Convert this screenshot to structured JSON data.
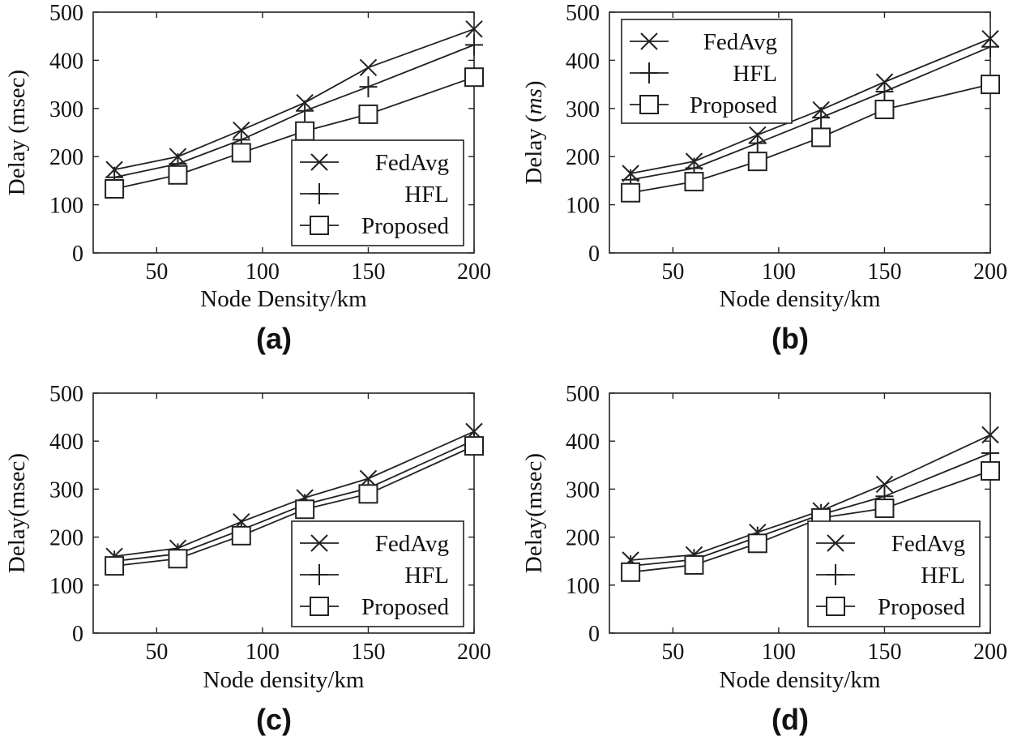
{
  "figure": {
    "background": "#ffffff",
    "line_color": "#222222"
  },
  "chart_data": [
    {
      "type": "line",
      "panel_label": "(a)",
      "xlabel": "Node Density/km",
      "ylabel": "Delay (msec)",
      "ylabel_parts": [
        {
          "text": "Delay (msec)",
          "italic": false
        }
      ],
      "x": [
        30,
        60,
        90,
        120,
        150,
        200
      ],
      "xticks": [
        "50",
        "100",
        "150",
        "200"
      ],
      "xtick_values": [
        50,
        100,
        150,
        200
      ],
      "yticks": [
        "0",
        "100",
        "200",
        "300",
        "400",
        "500"
      ],
      "ytick_values": [
        0,
        100,
        200,
        300,
        400,
        500
      ],
      "xlim": [
        20,
        200
      ],
      "ylim": [
        0,
        500
      ],
      "grid": false,
      "legend_position": "bottom-right",
      "series": [
        {
          "name": "FedAvg",
          "marker": "x",
          "values": [
            173,
            200,
            255,
            312,
            385,
            465
          ]
        },
        {
          "name": "HFL",
          "marker": "+",
          "values": [
            157,
            185,
            235,
            295,
            345,
            432
          ]
        },
        {
          "name": "Proposed",
          "marker": "square",
          "values": [
            133,
            162,
            208,
            253,
            288,
            365
          ]
        }
      ]
    },
    {
      "type": "line",
      "panel_label": "(b)",
      "xlabel": "Node density/km",
      "ylabel": "Delay (ms)",
      "ylabel_parts": [
        {
          "text": "Delay (",
          "italic": false
        },
        {
          "text": "ms",
          "italic": true
        },
        {
          "text": ")",
          "italic": false
        }
      ],
      "x": [
        30,
        60,
        90,
        120,
        150,
        200
      ],
      "xticks": [
        "50",
        "100",
        "150",
        "200"
      ],
      "xtick_values": [
        50,
        100,
        150,
        200
      ],
      "yticks": [
        "0",
        "100",
        "200",
        "300",
        "400",
        "500"
      ],
      "ytick_values": [
        0,
        100,
        200,
        300,
        400,
        500
      ],
      "xlim": [
        20,
        200
      ],
      "ylim": [
        0,
        500
      ],
      "grid": false,
      "legend_position": "top-left",
      "series": [
        {
          "name": "FedAvg",
          "marker": "x",
          "values": [
            165,
            190,
            245,
            297,
            355,
            445
          ]
        },
        {
          "name": "HFL",
          "marker": "+",
          "values": [
            152,
            176,
            228,
            281,
            335,
            428
          ]
        },
        {
          "name": "Proposed",
          "marker": "square",
          "values": [
            125,
            148,
            190,
            240,
            298,
            350
          ]
        }
      ]
    },
    {
      "type": "line",
      "panel_label": "(c)",
      "xlabel": "Node density/km",
      "ylabel": "Delay(msec)",
      "ylabel_parts": [
        {
          "text": "Delay(msec)",
          "italic": false
        }
      ],
      "x": [
        30,
        60,
        90,
        120,
        150,
        200
      ],
      "xticks": [
        "50",
        "100",
        "150",
        "200"
      ],
      "xtick_values": [
        50,
        100,
        150,
        200
      ],
      "yticks": [
        "0",
        "100",
        "200",
        "300",
        "400",
        "500"
      ],
      "ytick_values": [
        0,
        100,
        200,
        300,
        400,
        500
      ],
      "xlim": [
        20,
        200
      ],
      "ylim": [
        0,
        500
      ],
      "grid": false,
      "legend_position": "bottom-right",
      "series": [
        {
          "name": "FedAvg",
          "marker": "x",
          "values": [
            160,
            177,
            232,
            282,
            322,
            420
          ]
        },
        {
          "name": "HFL",
          "marker": "+",
          "values": [
            150,
            165,
            215,
            268,
            302,
            402
          ]
        },
        {
          "name": "Proposed",
          "marker": "square",
          "values": [
            140,
            155,
            203,
            258,
            290,
            390
          ]
        }
      ]
    },
    {
      "type": "line",
      "panel_label": "(d)",
      "xlabel": "Node density/km",
      "ylabel": "Delay(msec)",
      "ylabel_parts": [
        {
          "text": "Delay(msec)",
          "italic": false
        }
      ],
      "x": [
        30,
        60,
        90,
        120,
        150,
        200
      ],
      "xticks": [
        "50",
        "100",
        "150",
        "200"
      ],
      "xtick_values": [
        50,
        100,
        150,
        200
      ],
      "yticks": [
        "0",
        "100",
        "200",
        "300",
        "400",
        "500"
      ],
      "ytick_values": [
        0,
        100,
        200,
        300,
        400,
        500
      ],
      "xlim": [
        20,
        200
      ],
      "ylim": [
        0,
        500
      ],
      "grid": false,
      "legend_position": "bottom-right",
      "series": [
        {
          "name": "FedAvg",
          "marker": "x",
          "values": [
            152,
            163,
            210,
            255,
            310,
            413
          ]
        },
        {
          "name": "HFL",
          "marker": "+",
          "values": [
            140,
            153,
            200,
            247,
            285,
            375
          ]
        },
        {
          "name": "Proposed",
          "marker": "square",
          "values": [
            127,
            142,
            187,
            240,
            260,
            338
          ]
        }
      ]
    }
  ]
}
